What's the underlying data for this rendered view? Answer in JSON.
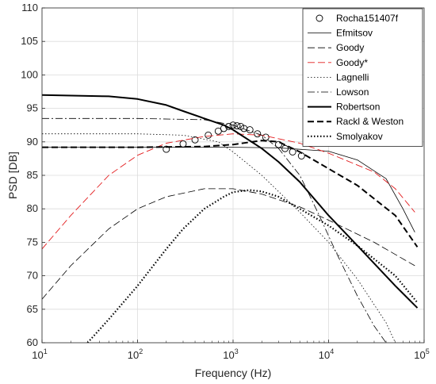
{
  "chart_data": {
    "type": "line",
    "xlabel": "Frequency (Hz)",
    "ylabel": "PSD [DB]",
    "xscale": "log",
    "xlim": [
      10,
      100000
    ],
    "ylim": [
      60,
      110
    ],
    "xticks": [
      {
        "value": 10,
        "base": "10",
        "exp": "1"
      },
      {
        "value": 100,
        "base": "10",
        "exp": "2"
      },
      {
        "value": 1000,
        "base": "10",
        "exp": "3"
      },
      {
        "value": 10000,
        "base": "10",
        "exp": "4"
      },
      {
        "value": 100000,
        "base": "10",
        "exp": "5"
      }
    ],
    "yticks": [
      60,
      65,
      70,
      75,
      80,
      85,
      90,
      95,
      100,
      105,
      110
    ],
    "grid": true,
    "legend_position": "top-right",
    "series": [
      {
        "name": "Rocha151407f",
        "kind": "markers",
        "color": "#000000",
        "x": [
          200,
          300,
          400,
          550,
          700,
          800,
          900,
          1000,
          1100,
          1200,
          1300,
          1500,
          1800,
          2200,
          3000,
          3500,
          4200,
          5200
        ],
        "y": [
          88.9,
          89.7,
          90.3,
          91.0,
          91.6,
          92.0,
          92.3,
          92.5,
          92.4,
          92.3,
          92.0,
          91.8,
          91.2,
          90.7,
          89.6,
          89.0,
          88.5,
          87.9
        ]
      },
      {
        "name": "Efmitsov",
        "kind": "line",
        "color": "#000000",
        "width": 0.8,
        "dash": "",
        "x": [
          10,
          100,
          1000,
          3000,
          10000,
          20000,
          40000,
          60000,
          80000
        ],
        "y": [
          89.2,
          89.2,
          89.2,
          89.1,
          88.6,
          87.3,
          84.5,
          80.0,
          76.5
        ]
      },
      {
        "name": "Goody",
        "kind": "line",
        "color": "#000000",
        "width": 0.8,
        "dash": "9,4",
        "x": [
          10,
          20,
          50,
          100,
          200,
          500,
          1000,
          2000,
          5000,
          10000,
          30000,
          80000
        ],
        "y": [
          66.5,
          71.5,
          77.0,
          80.0,
          81.8,
          83.0,
          83.0,
          82.2,
          80.3,
          78.3,
          75.0,
          71.5
        ]
      },
      {
        "name": "Goody*",
        "kind": "line",
        "color": "#e31a1c",
        "width": 0.9,
        "dash": "9,4",
        "x": [
          10,
          20,
          50,
          100,
          200,
          500,
          1000,
          2000,
          5000,
          10000,
          30000,
          50000,
          80000
        ],
        "y": [
          74.0,
          79.0,
          85.0,
          88.0,
          89.8,
          90.8,
          91.2,
          91.0,
          89.8,
          88.3,
          85.5,
          83.0,
          79.5
        ]
      },
      {
        "name": "Lagnelli",
        "kind": "line",
        "color": "#000000",
        "width": 0.8,
        "dash": "1.5,2.5",
        "x": [
          10,
          100,
          300,
          700,
          1000,
          2000,
          5000,
          10000,
          20000,
          40000,
          50000
        ],
        "y": [
          91.2,
          91.2,
          91.0,
          90.0,
          88.5,
          85.0,
          79.5,
          75.0,
          69.5,
          63.0,
          60.0
        ]
      },
      {
        "name": "Lowson",
        "kind": "line",
        "color": "#000000",
        "width": 0.8,
        "dash": "9,3,2,3",
        "x": [
          10,
          100,
          500,
          1000,
          2000,
          3000,
          5000,
          8000,
          12000,
          20000,
          30000,
          40000
        ],
        "y": [
          93.5,
          93.5,
          93.3,
          92.5,
          91.0,
          89.0,
          85.0,
          79.0,
          73.5,
          67.0,
          62.5,
          60.0
        ]
      },
      {
        "name": "Robertson",
        "kind": "line",
        "color": "#000000",
        "width": 2.0,
        "dash": "",
        "x": [
          10,
          50,
          100,
          200,
          300,
          500,
          800,
          1000,
          2000,
          3000,
          5000,
          10000,
          20000,
          50000,
          85000
        ],
        "y": [
          97.0,
          96.8,
          96.4,
          95.5,
          94.6,
          93.5,
          92.5,
          91.8,
          89.0,
          87.0,
          84.0,
          79.0,
          74.5,
          68.5,
          65.2
        ]
      },
      {
        "name": "Rackl & Weston",
        "kind": "line",
        "color": "#000000",
        "width": 2.0,
        "dash": "8,4",
        "x": [
          10,
          100,
          500,
          1000,
          2000,
          3000,
          5000,
          10000,
          20000,
          50000,
          85000
        ],
        "y": [
          89.2,
          89.2,
          89.3,
          89.6,
          90.2,
          90.0,
          88.5,
          86.0,
          83.5,
          79.0,
          74.3
        ]
      },
      {
        "name": "Smolyakov",
        "kind": "line",
        "color": "#000000",
        "width": 2.2,
        "dash": "1.5,2.5",
        "x": [
          30,
          50,
          100,
          200,
          300,
          500,
          800,
          1000,
          1500,
          2000,
          3000,
          5000,
          10000,
          20000,
          50000,
          85000
        ],
        "y": [
          60.0,
          63.5,
          68.5,
          74.0,
          77.0,
          80.0,
          81.8,
          82.5,
          82.8,
          82.6,
          81.8,
          80.0,
          77.5,
          74.5,
          70.0,
          66.0
        ]
      }
    ]
  }
}
